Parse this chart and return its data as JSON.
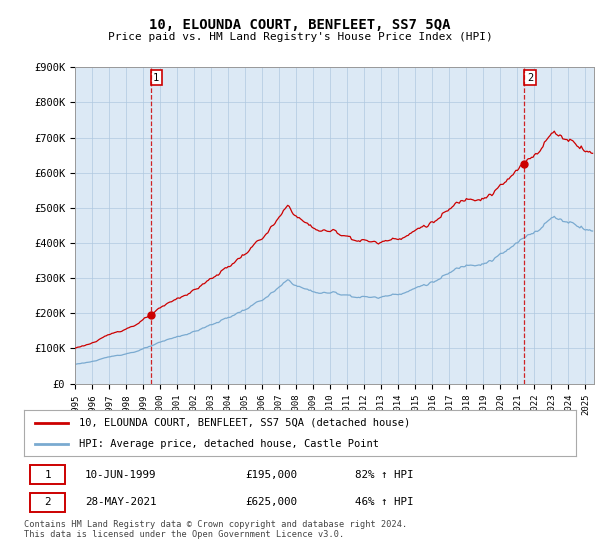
{
  "title": "10, ELOUNDA COURT, BENFLEET, SS7 5QA",
  "subtitle": "Price paid vs. HM Land Registry's House Price Index (HPI)",
  "ylabel_ticks": [
    "£0",
    "£100K",
    "£200K",
    "£300K",
    "£400K",
    "£500K",
    "£600K",
    "£700K",
    "£800K",
    "£900K"
  ],
  "ylim": [
    0,
    900000
  ],
  "xlim_start": 1995.0,
  "xlim_end": 2025.5,
  "hpi_color": "#7aaad0",
  "price_color": "#cc0000",
  "marker1_x": 1999.44,
  "marker1_y": 195000,
  "marker2_x": 2021.41,
  "marker2_y": 625000,
  "legend_line1": "10, ELOUNDA COURT, BENFLEET, SS7 5QA (detached house)",
  "legend_line2": "HPI: Average price, detached house, Castle Point",
  "table_row1_num": "1",
  "table_row1_date": "10-JUN-1999",
  "table_row1_price": "£195,000",
  "table_row1_hpi": "82% ↑ HPI",
  "table_row2_num": "2",
  "table_row2_date": "28-MAY-2021",
  "table_row2_price": "£625,000",
  "table_row2_hpi": "46% ↑ HPI",
  "footer": "Contains HM Land Registry data © Crown copyright and database right 2024.\nThis data is licensed under the Open Government Licence v3.0.",
  "vline_color": "#cc0000",
  "bg_color": "#ffffff",
  "chart_bg_color": "#dce9f5",
  "grid_color": "#b0c8e0"
}
